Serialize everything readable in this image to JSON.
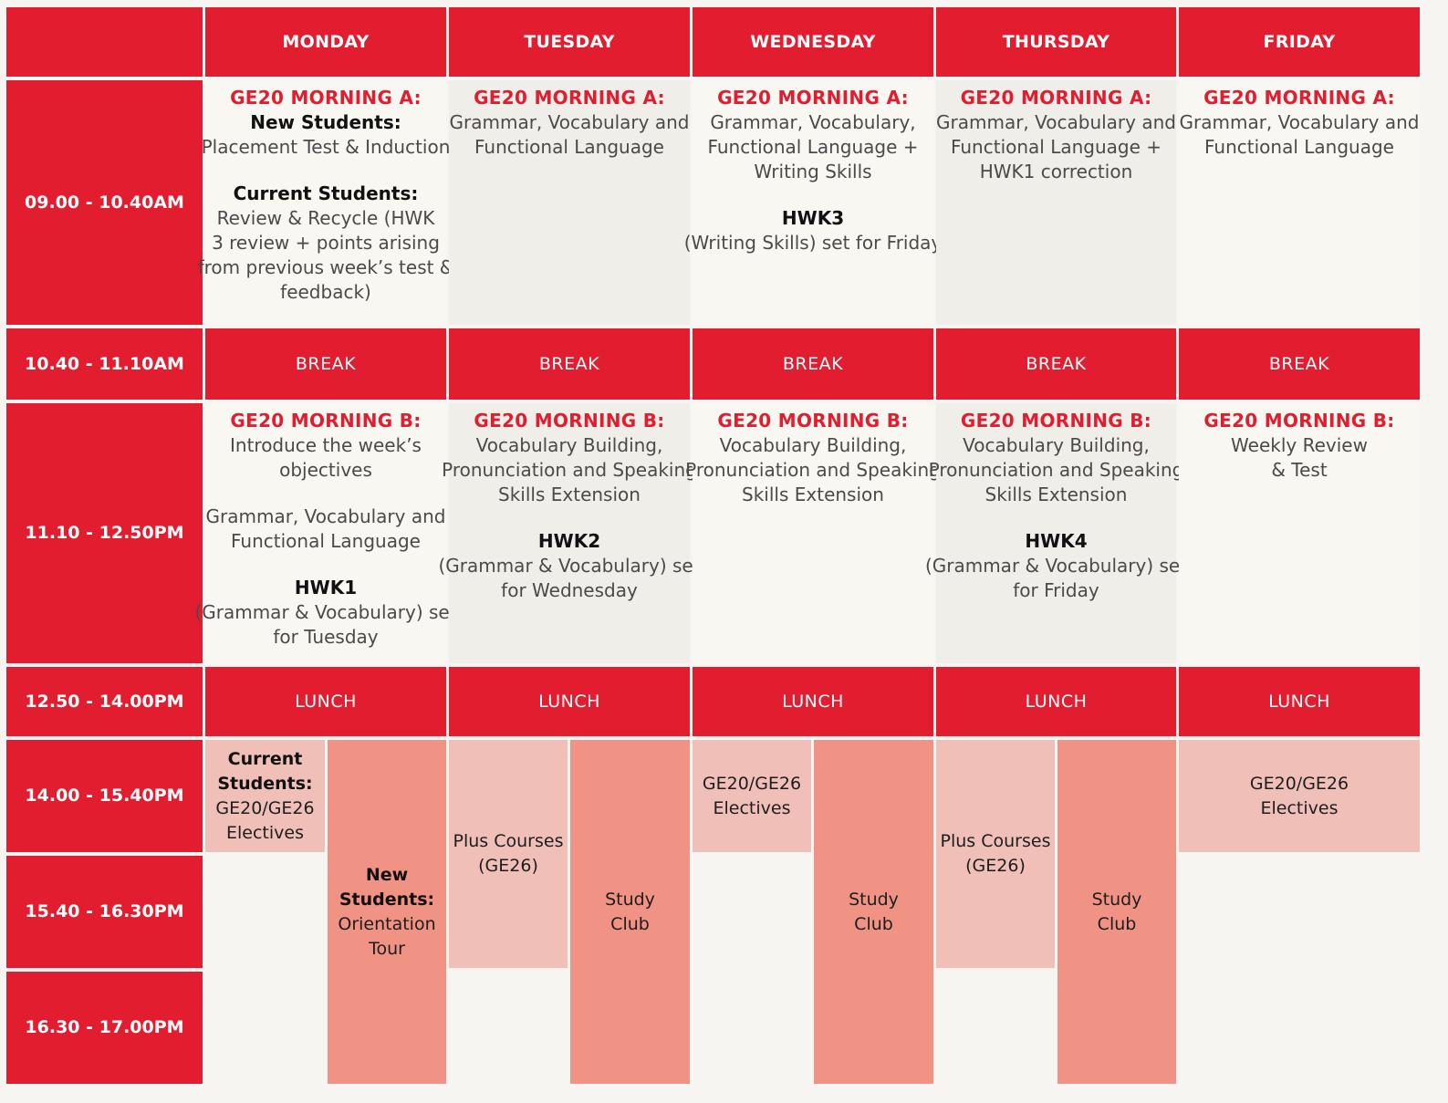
{
  "days": [
    "MONDAY",
    "TUESDAY",
    "WEDNESDAY",
    "THURSDAY",
    "FRIDAY"
  ],
  "times": [
    "09.00 - 10.40AM",
    "10.40 - 11.10AM",
    "11.10 - 12.50PM",
    "12.50 - 14.00PM",
    "14.00 - 15.40PM",
    "15.40 - 16.30PM",
    "16.30 - 17.00PM"
  ],
  "breaks": {
    "break": "BREAK",
    "lunch": "LUNCH"
  },
  "morning_a": {
    "monday": {
      "title": "GE20 MORNING A:",
      "new_label": "New Students:",
      "new_text": "Placement Test & Induction",
      "current_label": "Current Students:",
      "current_1": "Review & Recycle (HWK",
      "current_2": "3 review + points arising",
      "current_3": "from previous week’s test &",
      "current_4": "feedback)"
    },
    "tuesday": {
      "title": "GE20 MORNING A:",
      "l1": "Grammar, Vocabulary and",
      "l2": "Functional Language"
    },
    "wednesday": {
      "title": "GE20 MORNING A:",
      "l1": "Grammar, Vocabulary,",
      "l2": "Functional Language +",
      "l3": "Writing Skills",
      "hwk": "HWK3",
      "hwk_text": "(Writing Skills) set for Friday"
    },
    "thursday": {
      "title": "GE20 MORNING A:",
      "l1": "Grammar, Vocabulary and",
      "l2": "Functional Language +",
      "l3": "HWK1 correction"
    },
    "friday": {
      "title": "GE20 MORNING A:",
      "l1": "Grammar, Vocabulary and",
      "l2": "Functional Language"
    }
  },
  "morning_b": {
    "monday": {
      "title": "GE20 MORNING B:",
      "l1": "Introduce the week’s",
      "l2": "objectives",
      "l3": "Grammar, Vocabulary and",
      "l4": "Functional Language",
      "hwk": "HWK1",
      "hwk_1": "(Grammar & Vocabulary) set",
      "hwk_2": "for Tuesday"
    },
    "tuesday": {
      "title": "GE20 MORNING B:",
      "l1": "Vocabulary Building,",
      "l2": "Pronunciation and Speaking",
      "l3": "Skills Extension",
      "hwk": "HWK2",
      "hwk_1": "(Grammar & Vocabulary) set",
      "hwk_2": "for Wednesday"
    },
    "wednesday": {
      "title": "GE20 MORNING B:",
      "l1": "Vocabulary Building,",
      "l2": "Pronunciation and Speaking",
      "l3": "Skills Extension"
    },
    "thursday": {
      "title": "GE20 MORNING B:",
      "l1": "Vocabulary Building,",
      "l2": "Pronunciation and Speaking",
      "l3": "Skills Extension",
      "hwk": "HWK4",
      "hwk_1": "(Grammar & Vocabulary) set",
      "hwk_2": "for Friday"
    },
    "friday": {
      "title": "GE20 MORNING B:",
      "l1": "Weekly Review",
      "l2": "& Test"
    }
  },
  "afternoon": {
    "monday_current": {
      "l1": "Current",
      "l2": "Students:",
      "l3": "GE20/GE26",
      "l4": "Electives"
    },
    "monday_new": {
      "l1": "New",
      "l2": "Students:",
      "l3": "Orientation",
      "l4": "Tour"
    },
    "plus_courses": {
      "l1": "Plus Courses",
      "l2": "(GE26)"
    },
    "study_club": {
      "l1": "Study",
      "l2": "Club"
    },
    "electives": {
      "l1": "GE20/GE26",
      "l2": "Electives"
    }
  },
  "colors": {
    "red": "#e11d2f",
    "cream": "#f8f7f1",
    "grey": "#efeee8",
    "pink": "#f0c0b8",
    "salmon": "#f09384"
  }
}
